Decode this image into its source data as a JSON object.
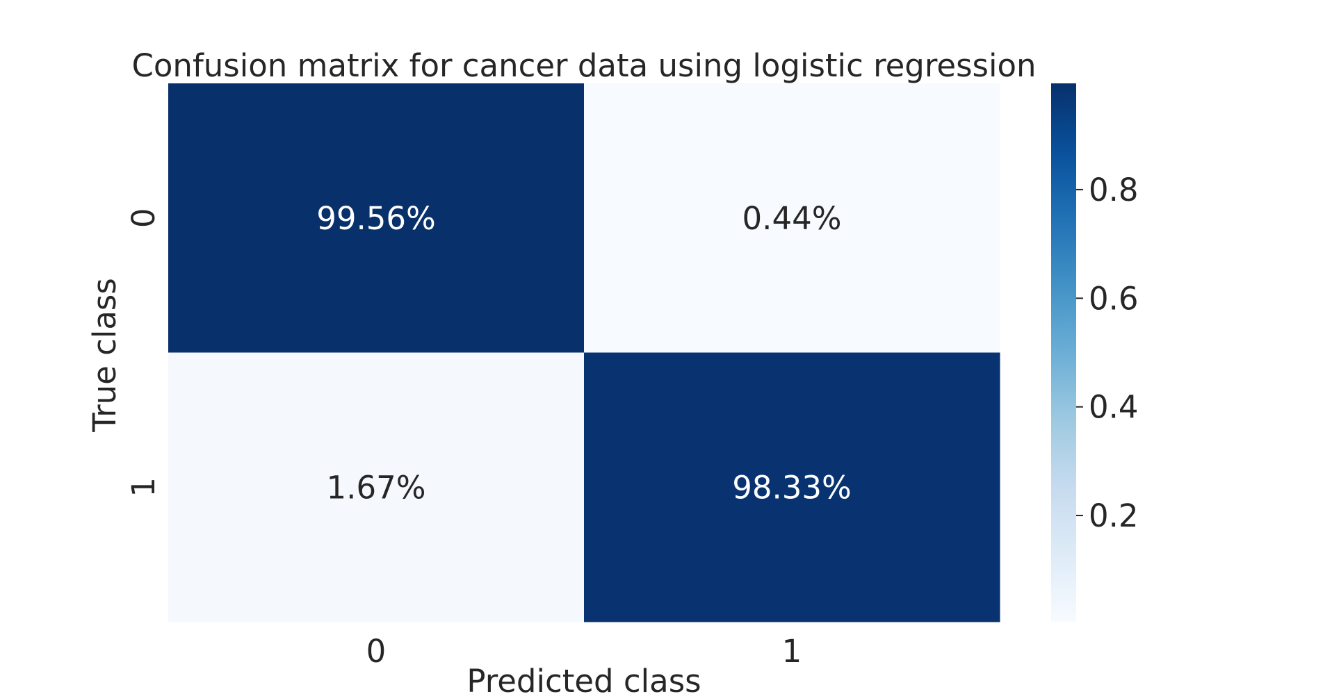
{
  "chart_data": {
    "type": "heatmap",
    "title": "Confusion matrix for cancer data using logistic regression",
    "xlabel": "Predicted class",
    "ylabel": "True class",
    "x_categories": [
      "0",
      "1"
    ],
    "y_categories": [
      "0",
      "1"
    ],
    "values": [
      [
        0.9956,
        0.0044
      ],
      [
        0.0167,
        0.9833
      ]
    ],
    "annotations": [
      [
        "99.56%",
        "0.44%"
      ],
      [
        "1.67%",
        "98.33%"
      ]
    ],
    "colormap": "Blues",
    "color_low": "#f7fbff",
    "color_high": "#08306b",
    "colorbar": {
      "range": [
        0.0044,
        0.9956
      ],
      "ticks": [
        0.2,
        0.4,
        0.6,
        0.8
      ],
      "tick_labels": [
        "0.2",
        "0.4",
        "0.6",
        "0.8"
      ]
    }
  }
}
